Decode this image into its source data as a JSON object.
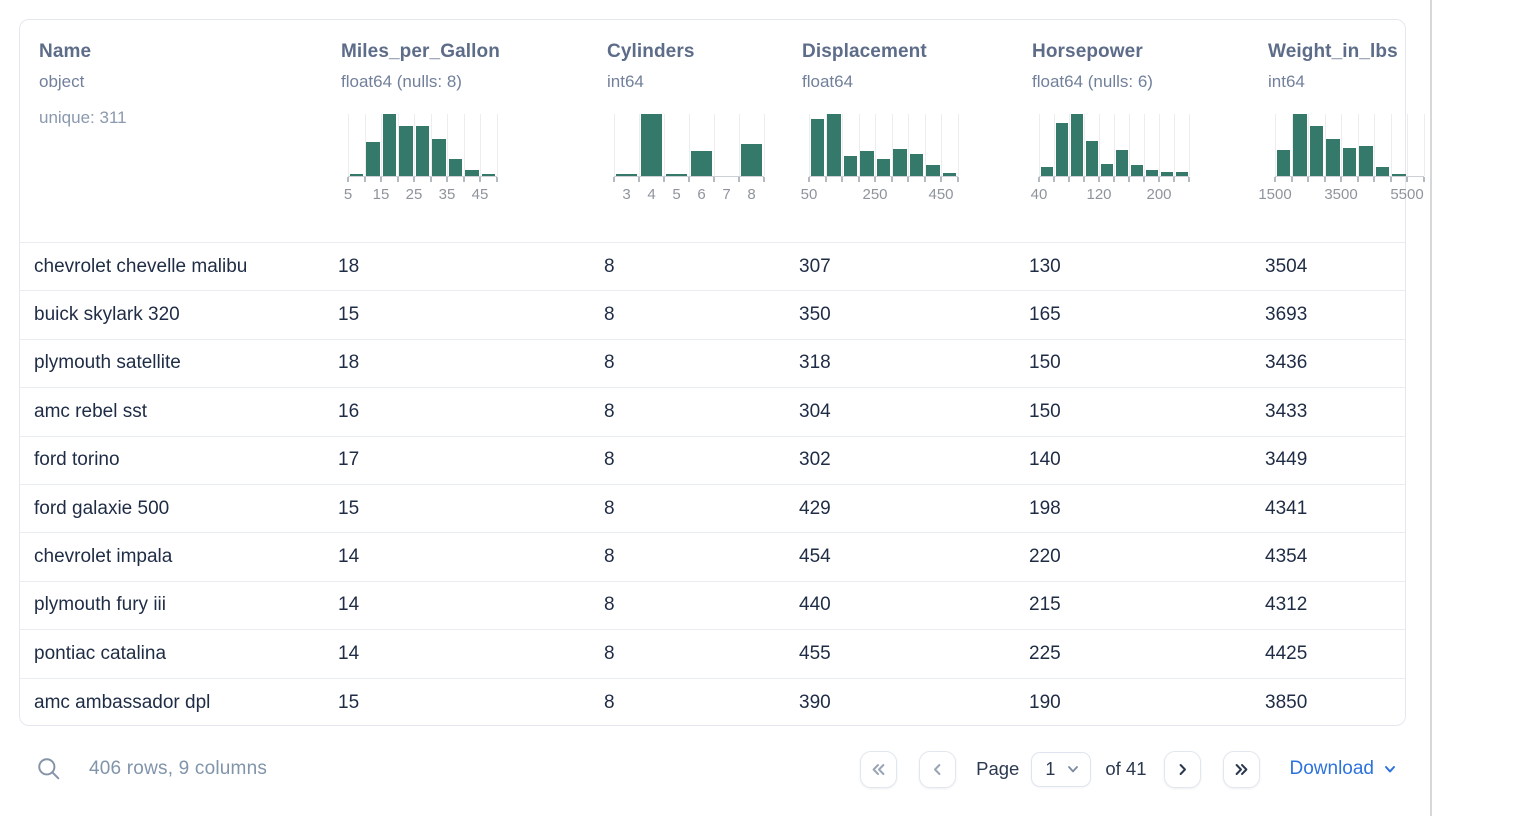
{
  "colors": {
    "histogram_bar": "#35796a",
    "accent_blue": "#2e73dc",
    "header_text": "#5d6c88",
    "row_text": "#1f2c45",
    "muted_text": "#8094aa",
    "card_border": "#e4e8ee"
  },
  "icons": {
    "search": "magnifier-icon",
    "first_page": "double-chevron-left-icon",
    "prev_page": "chevron-left-icon",
    "next_page": "chevron-right-icon",
    "last_page": "double-chevron-right-icon",
    "select_caret": "chevron-down-icon",
    "download_caret": "chevron-down-icon"
  },
  "table": {
    "columns": [
      {
        "name": "Name",
        "dtype": "object",
        "meta": "unique: 311",
        "histogram": null
      },
      {
        "name": "Miles_per_Gallon",
        "dtype": "float64 (nulls: 8)",
        "histogram": {
          "heights_pct_of_max": [
            3,
            55,
            100,
            80,
            80,
            60,
            28,
            10,
            3
          ],
          "labels": [
            "5",
            "15",
            "25",
            "35",
            "45"
          ],
          "label_at": [
            0,
            2,
            4,
            6,
            8
          ],
          "label_mode": "boundary"
        }
      },
      {
        "name": "Cylinders",
        "dtype": "int64",
        "histogram": {
          "heights_pct_of_max": [
            3,
            100,
            2,
            40,
            0,
            52
          ],
          "labels": [
            "3",
            "4",
            "5",
            "6",
            "7",
            "8"
          ],
          "label_at": [
            0,
            1,
            2,
            3,
            4,
            5
          ],
          "label_mode": "center"
        }
      },
      {
        "name": "Displacement",
        "dtype": "float64",
        "histogram": {
          "heights_pct_of_max": [
            92,
            100,
            33,
            40,
            28,
            43,
            36,
            18,
            5
          ],
          "labels": [
            "50",
            "250",
            "450"
          ],
          "label_at": [
            0,
            4,
            8
          ],
          "label_mode": "boundary"
        }
      },
      {
        "name": "Horsepower",
        "dtype": "float64 (nulls: 6)",
        "histogram": {
          "heights_pct_of_max": [
            15,
            85,
            100,
            57,
            20,
            42,
            17,
            10,
            7,
            6
          ],
          "labels": [
            "40",
            "120",
            "200"
          ],
          "label_at": [
            0,
            4,
            8
          ],
          "label_mode": "boundary"
        }
      },
      {
        "name": "Weight_in_lbs",
        "dtype": "int64",
        "histogram": {
          "heights_pct_of_max": [
            42,
            100,
            80,
            60,
            45,
            48,
            15,
            2,
            0
          ],
          "labels": [
            "1500",
            "3500",
            "5500"
          ],
          "label_at": [
            0,
            4,
            8
          ],
          "label_mode": "boundary"
        }
      }
    ],
    "rows": [
      [
        "chevrolet chevelle malibu",
        "18",
        "8",
        "307",
        "130",
        "3504"
      ],
      [
        "buick skylark 320",
        "15",
        "8",
        "350",
        "165",
        "3693"
      ],
      [
        "plymouth satellite",
        "18",
        "8",
        "318",
        "150",
        "3436"
      ],
      [
        "amc rebel sst",
        "16",
        "8",
        "304",
        "150",
        "3433"
      ],
      [
        "ford torino",
        "17",
        "8",
        "302",
        "140",
        "3449"
      ],
      [
        "ford galaxie 500",
        "15",
        "8",
        "429",
        "198",
        "4341"
      ],
      [
        "chevrolet impala",
        "14",
        "8",
        "454",
        "220",
        "4354"
      ],
      [
        "plymouth fury iii",
        "14",
        "8",
        "440",
        "215",
        "4312"
      ],
      [
        "pontiac catalina",
        "14",
        "8",
        "455",
        "225",
        "4425"
      ],
      [
        "amc ambassador dpl",
        "15",
        "8",
        "390",
        "190",
        "3850"
      ]
    ]
  },
  "footer": {
    "summary": "406 rows, 9 columns",
    "page_label": "Page",
    "page_value": "1",
    "page_options": [
      "1"
    ],
    "of_label": "of 41",
    "download_label": "Download"
  }
}
